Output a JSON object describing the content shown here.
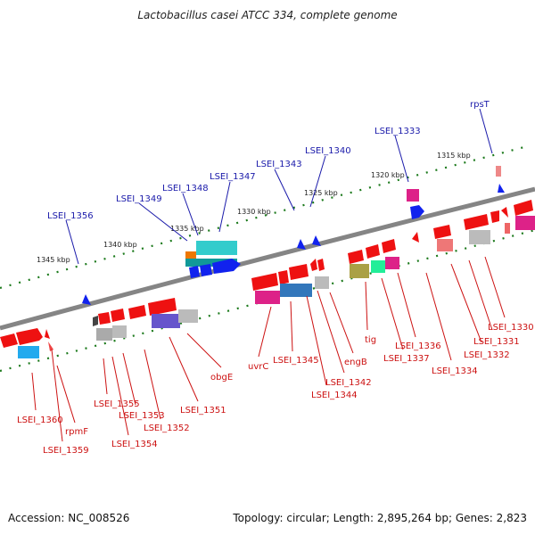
{
  "title": "Lactobacillus casei ATCC 334, complete genome",
  "footer": {
    "accession": "Accession: NC_008526",
    "summary": "Topology: circular; Length: 2,895,264 bp; Genes: 2,823"
  },
  "colors": {
    "forward_label": "#1a1aaa",
    "reverse_label": "#cc1111",
    "backbone": "#8a8a8a",
    "tick": "#1c7a1c"
  },
  "scale_labels": [
    "1345 kbp",
    "1340 kbp",
    "1335 kbp",
    "1330 kbp",
    "1325 kbp",
    "1320 kbp",
    "1315 kbp"
  ],
  "forward_genes": [
    "LSEI_1356",
    "LSEI_1349",
    "LSEI_1348",
    "LSEI_1347",
    "LSEI_1343",
    "LSEI_1340",
    "LSEI_1333",
    "rpsT"
  ],
  "reverse_genes": [
    "LSEI_1360",
    "LSEI_1359",
    "rpmF",
    "LSEI_1355",
    "LSEI_1354",
    "LSEI_1353",
    "LSEI_1352",
    "LSEI_1351",
    "obgE",
    "uvrC",
    "LSEI_1345",
    "LSEI_1344",
    "LSEI_1342",
    "engB",
    "tig",
    "LSEI_1337",
    "LSEI_1336",
    "LSEI_1334",
    "LSEI_1332",
    "LSEI_1331",
    "LSEI_1330"
  ]
}
